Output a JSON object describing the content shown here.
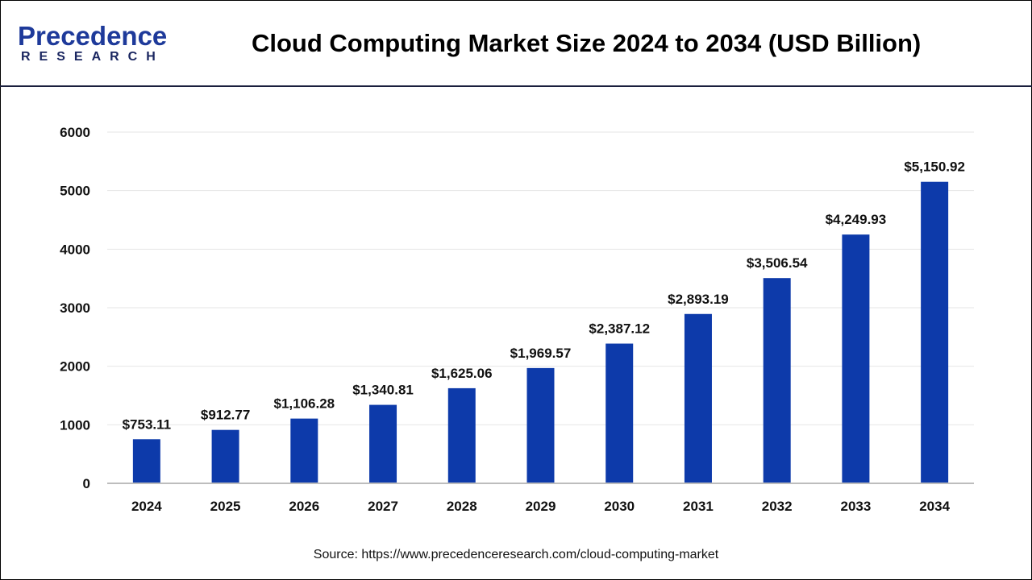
{
  "logo": {
    "line1": "Precedence",
    "line2": "RESEARCH"
  },
  "title": "Cloud Computing Market Size 2024 to 2034 (USD Billion)",
  "source": "Source: https://www.precedenceresearch.com/cloud-computing-market",
  "colors": {
    "bar": "#0d3aaa",
    "grid": "#e6e6e6",
    "axis": "#bdbdbd"
  },
  "chart_data": {
    "type": "bar",
    "title": "Cloud Computing Market Size 2024 to 2034 (USD Billion)",
    "xlabel": "",
    "ylabel": "",
    "ylim": [
      0,
      6000
    ],
    "yticks": [
      "0",
      "1000",
      "2000",
      "3000",
      "4000",
      "5000",
      "6000"
    ],
    "grid": true,
    "categories": [
      "2024",
      "2025",
      "2026",
      "2027",
      "2028",
      "2029",
      "2030",
      "2031",
      "2032",
      "2033",
      "2034"
    ],
    "values": [
      753.11,
      912.77,
      1106.28,
      1340.81,
      1625.06,
      1969.57,
      2387.12,
      2893.19,
      3506.54,
      4249.93,
      5150.92
    ],
    "data_labels": [
      "$753.11",
      "$912.77",
      "$1,106.28",
      "$1,340.81",
      "$1,625.06",
      "$1,969.57",
      "$2,387.12",
      "$2,893.19",
      "$3,506.54",
      "$4,249.93",
      "$5,150.92"
    ]
  }
}
